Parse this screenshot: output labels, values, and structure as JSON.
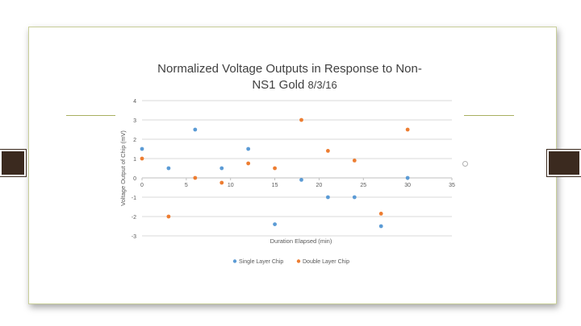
{
  "chart_data": {
    "type": "scatter",
    "title_line1": "Normalized Voltage Outputs in Response to Non-",
    "title_line2": "NS1 Gold",
    "date": "8/3/16",
    "xlabel": "Duration Elapsed (min)",
    "ylabel": "Voltage Output of Chip (mV)",
    "xlim": [
      0,
      35
    ],
    "ylim": [
      -3,
      4
    ],
    "xticks": [
      "0",
      "5",
      "10",
      "15",
      "20",
      "25",
      "30",
      "35"
    ],
    "yticks": [
      "4",
      "3",
      "2",
      "1",
      "0",
      "-1",
      "-2",
      "-3"
    ],
    "grid": "horizontal",
    "legend_position": "bottom",
    "series": [
      {
        "name": "Single Layer Chip",
        "color": "#5b9bd5",
        "points": [
          {
            "x": 0,
            "y": 1.5
          },
          {
            "x": 3,
            "y": 0.5
          },
          {
            "x": 6,
            "y": 2.5
          },
          {
            "x": 9,
            "y": 0.5
          },
          {
            "x": 12,
            "y": 1.5
          },
          {
            "x": 15,
            "y": -2.4
          },
          {
            "x": 18,
            "y": -0.1
          },
          {
            "x": 21,
            "y": -1.0
          },
          {
            "x": 24,
            "y": -1.0
          },
          {
            "x": 27,
            "y": -2.5
          },
          {
            "x": 30,
            "y": 0.0
          }
        ]
      },
      {
        "name": "Double Layer Chip",
        "color": "#ed7d31",
        "points": [
          {
            "x": 0,
            "y": 1.0
          },
          {
            "x": 3,
            "y": -2.0
          },
          {
            "x": 6,
            "y": 0.0
          },
          {
            "x": 9,
            "y": -0.25
          },
          {
            "x": 12,
            "y": 0.75
          },
          {
            "x": 15,
            "y": 0.5
          },
          {
            "x": 18,
            "y": 3.0
          },
          {
            "x": 21,
            "y": 1.4
          },
          {
            "x": 24,
            "y": 0.9
          },
          {
            "x": 27,
            "y": -1.85
          },
          {
            "x": 30,
            "y": 2.5
          }
        ]
      }
    ]
  }
}
